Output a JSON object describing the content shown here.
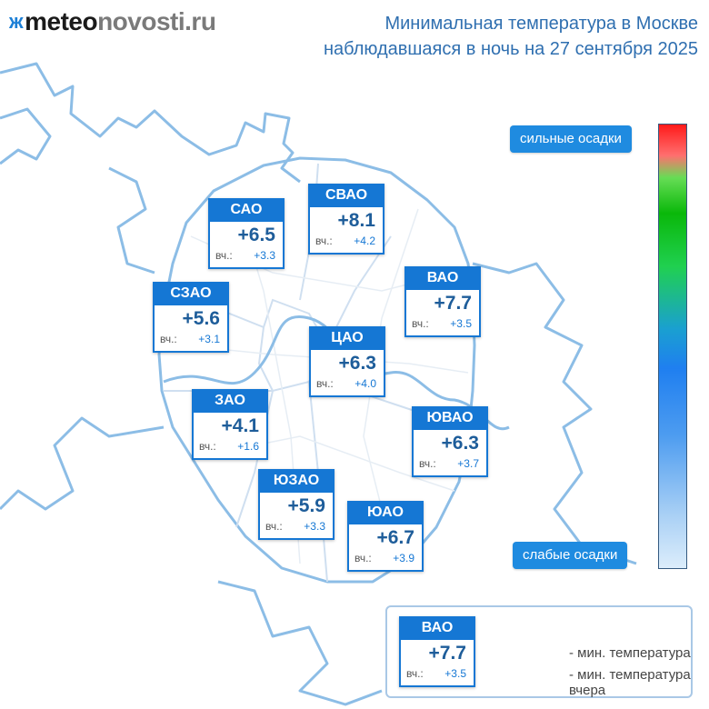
{
  "logo": {
    "mark": "ж",
    "meteo": "meteo",
    "novosti": "novosti.ru"
  },
  "title": {
    "line1": "Минимальная температура в Москве",
    "line2": "наблюдавшаяся в ночь на 27 сентября 2025"
  },
  "districts": [
    {
      "name": "САО",
      "value": "+6.5",
      "yesterday_label": "вч.:",
      "yesterday_value": "+3.3"
    },
    {
      "name": "СВАО",
      "value": "+8.1",
      "yesterday_label": "вч.:",
      "yesterday_value": "+4.2"
    },
    {
      "name": "ВАО",
      "value": "+7.7",
      "yesterday_label": "вч.:",
      "yesterday_value": "+3.5"
    },
    {
      "name": "СЗАО",
      "value": "+5.6",
      "yesterday_label": "вч.:",
      "yesterday_value": "+3.1"
    },
    {
      "name": "ЦАО",
      "value": "+6.3",
      "yesterday_label": "вч.:",
      "yesterday_value": "+4.0"
    },
    {
      "name": "ЗАО",
      "value": "+4.1",
      "yesterday_label": "вч.:",
      "yesterday_value": "+1.6"
    },
    {
      "name": "ЮВАО",
      "value": "+6.3",
      "yesterday_label": "вч.:",
      "yesterday_value": "+3.7"
    },
    {
      "name": "ЮЗАО",
      "value": "+5.9",
      "yesterday_label": "вч.:",
      "yesterday_value": "+3.3"
    },
    {
      "name": "ЮАО",
      "value": "+6.7",
      "yesterday_label": "вч.:",
      "yesterday_value": "+3.9"
    }
  ],
  "scale": {
    "top_label": "сильные осадки",
    "bottom_label": "слабые осадки"
  },
  "legend": {
    "sample": {
      "name": "ВАО",
      "value": "+7.7",
      "yesterday_label": "вч.:",
      "yesterday_value": "+3.5"
    },
    "min_temp": "- мин. температура",
    "min_temp_yesterday": "- мин. температура вчера"
  },
  "colors": {
    "accent": "#1577d4",
    "map_outline": "#8cbde6",
    "title": "#2f6fb0"
  }
}
